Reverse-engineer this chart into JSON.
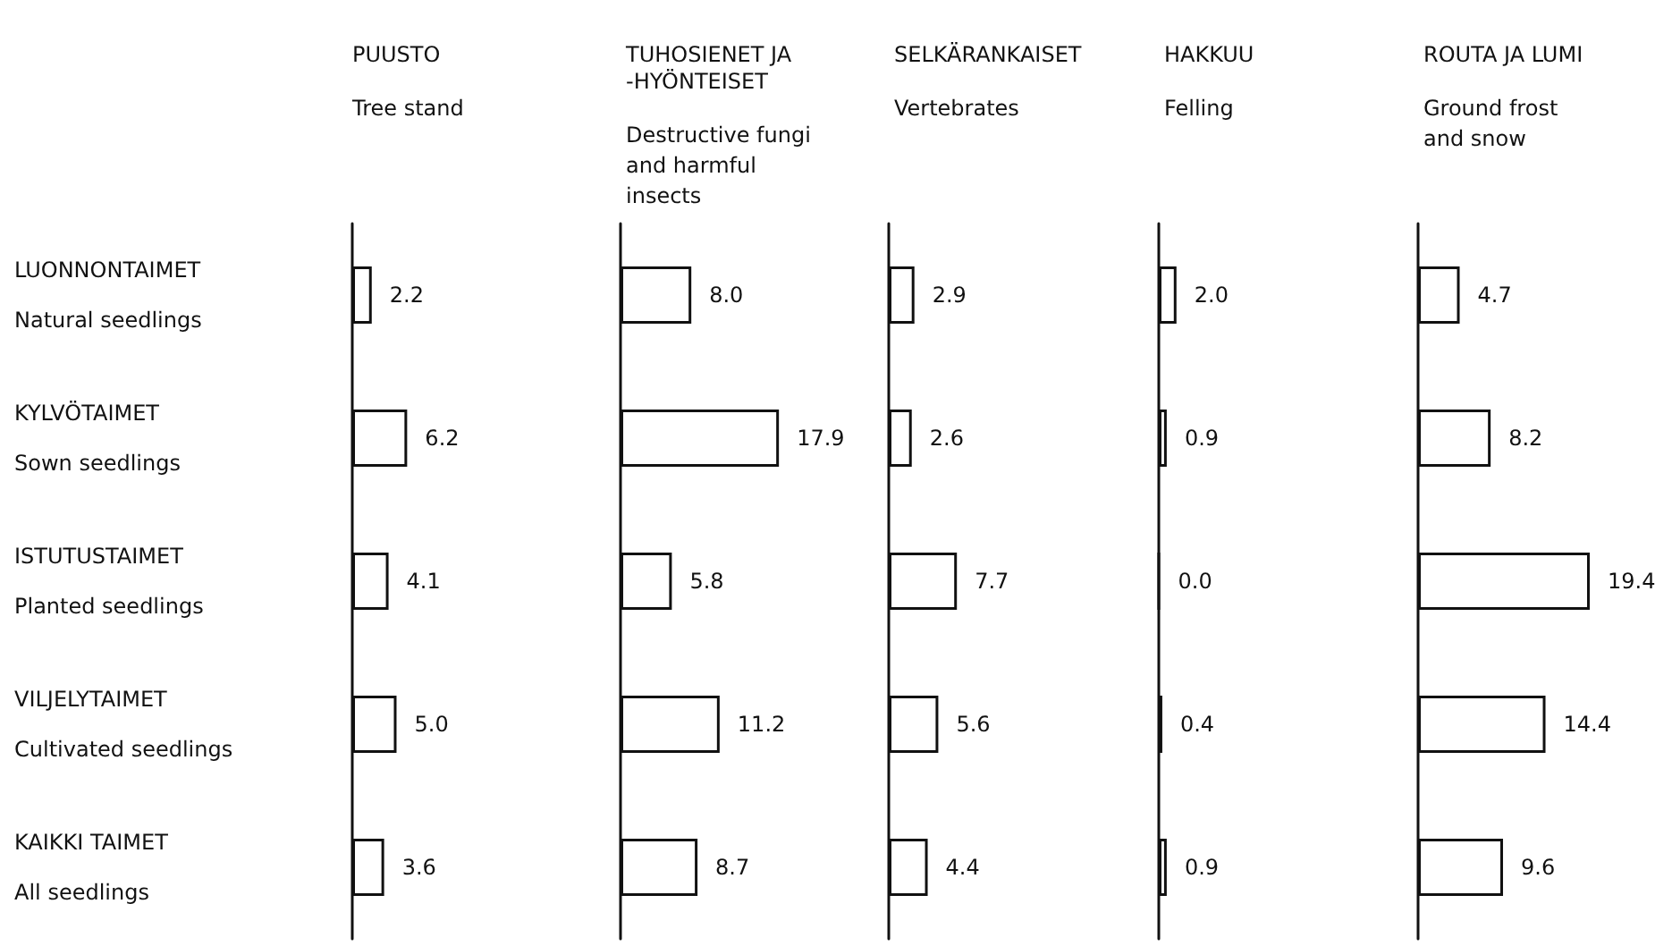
{
  "chart_data": [
    {
      "type": "bar",
      "orientation": "horizontal",
      "title": "PUUSTO",
      "subtitle": "Tree stand",
      "categories": [
        "LUONNONTAIMET\nNatural seedlings",
        "KYLVÖTAIMET\nSown seedlings",
        "ISTUTUSTAIMET\nPlanted seedlings",
        "VILJELYTAIMET\nCultivated seedlings",
        "KAIKKI TAIMET\nAll seedlings"
      ],
      "values": [
        2.2,
        6.2,
        4.1,
        5.0,
        3.6
      ],
      "value_labels": [
        "2.2",
        "6.2",
        "4.1",
        "5.0",
        "3.6"
      ],
      "color": "#ffffff",
      "tick_labels": "y"
    },
    {
      "type": "bar",
      "orientation": "horizontal",
      "title": "TUHOSIENET JA\n-HYÖNTEISET",
      "subtitle": "Destructive fungi\nand harmful\ninsects",
      "categories": [
        null,
        null,
        null,
        null,
        null
      ],
      "values": [
        8.0,
        17.9,
        5.8,
        11.2,
        8.7
      ],
      "value_labels": [
        "8.0",
        "17.9",
        "5.8",
        "11.2",
        "8.7"
      ],
      "color": "#ffffff",
      "tick_labels": false
    },
    {
      "type": "bar",
      "orientation": "horizontal",
      "title": "SELKÄRANKAISET",
      "subtitle": "Vertebrates",
      "categories": [
        null,
        null,
        null,
        null,
        null
      ],
      "values": [
        2.9,
        2.6,
        7.7,
        5.6,
        4.4
      ],
      "value_labels": [
        "2.9",
        "2.6",
        "7.7",
        "5.6",
        "4.4"
      ],
      "color": "#ffffff",
      "tick_labels": false
    },
    {
      "type": "bar",
      "orientation": "horizontal",
      "title": "HAKKUU",
      "subtitle": "Felling",
      "categories": [
        null,
        null,
        null,
        null,
        null
      ],
      "values": [
        2.0,
        0.9,
        0.0,
        0.4,
        0.9
      ],
      "value_labels": [
        "2.0",
        "0.9",
        "0.0",
        "0.4",
        "0.9"
      ],
      "color": "#ffffff",
      "tick_labels": false
    },
    {
      "type": "bar",
      "orientation": "horizontal",
      "title": "ROUTA JA LUMI",
      "subtitle": "Ground frost\nand snow",
      "categories": [
        null,
        null,
        null,
        null,
        null
      ],
      "values": [
        4.7,
        8.2,
        19.4,
        14.4,
        9.6
      ],
      "value_labels": [
        "4.7",
        "8.2",
        "19.4",
        "14.4",
        "9.6"
      ],
      "color": "#ffffff",
      "tick_labels": false
    }
  ]
}
